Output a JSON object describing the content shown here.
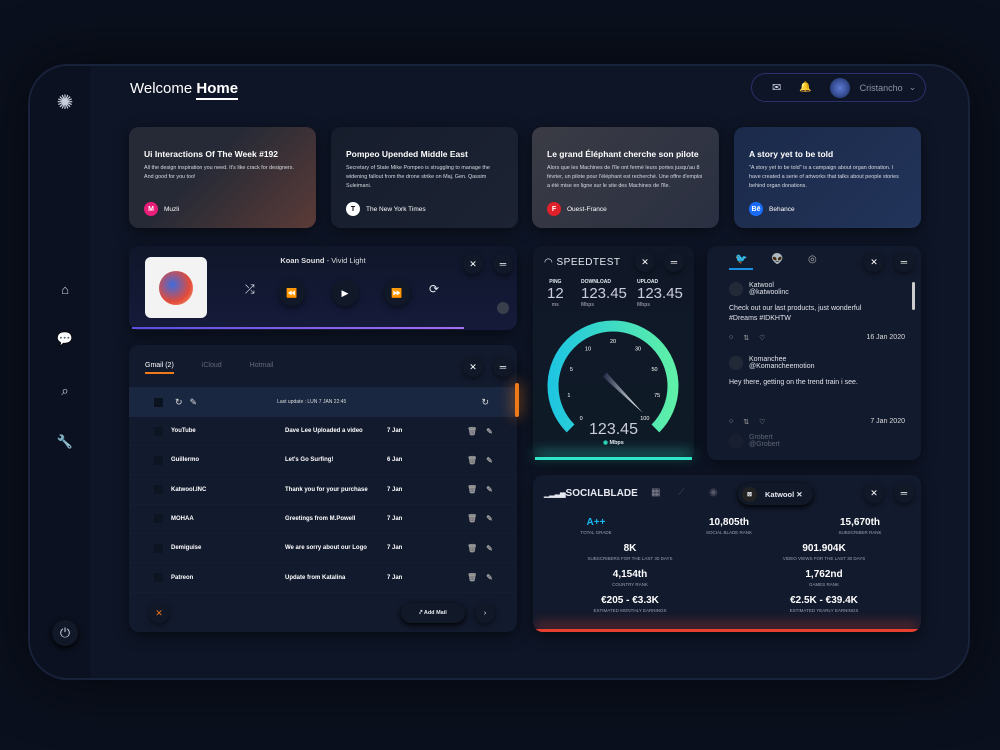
{
  "header": {
    "welcome": "Welcome",
    "home": "Home",
    "user": "Cristancho"
  },
  "sidebar": {
    "items": [
      "home-icon",
      "chat-icon",
      "search-icon",
      "wrench-icon"
    ],
    "power": "power-icon"
  },
  "news": [
    {
      "title": "Ui Interactions Of The Week #192",
      "text": "All the design inspiration you need. It's like crack for design­ers. And good for you too!",
      "source": "Muzli",
      "badge": "M",
      "color": "#e91e78",
      "bg": "linear-gradient(135deg,#262a36 40%,#5c3b37 100%)"
    },
    {
      "title": "Pompeo Upended Middle East",
      "text": "Secretary of State Mike Pompeo is struggling to manage the widening fallout from the drone strike on Maj. Gen. Qassim Suleimani.",
      "source": "The New York Times",
      "badge": "T",
      "color": "#ffffff",
      "bg": "linear-gradient(135deg,#161d2c,#1c2333)"
    },
    {
      "title": "Le grand Éléphant cherche son pilote",
      "text": "Alors que les Machines de l'île ont fermé leurs portes jusqu'au 8 février, un pilote pour l'éléphant est recherché.  Une offre d'emploi a été mise en ligne sur le site des Machines de l'île.",
      "source": "Ouest-France",
      "badge": "F",
      "color": "#e0202a",
      "bg": "linear-gradient(135deg,#3a3b44,#2a3042)"
    },
    {
      "title": "A story yet to be told",
      "text": "\"A story yet to be told\" is a campaign about organ donation. I have created a serie of artworks that talks about people stories behind organ donations.",
      "source": "Behance",
      "badge": "Bē",
      "color": "#1a6cff",
      "bg": "linear-gradient(135deg,#1b2a4a,#22345a)"
    }
  ],
  "music": {
    "artist": "Koan Sound",
    "track": "Vivid Light",
    "progress": 0.87
  },
  "mail": {
    "tabs": [
      "Gmail (2)",
      "iCloud",
      "Hotmail"
    ],
    "last_update": "Last update : LUN 7 JAN 22:45",
    "add": "Add Mail",
    "rows": [
      [
        "YouTube",
        "Dave Lee Uploaded a video",
        "7 Jan"
      ],
      [
        "Guillermo",
        "Let's Go Surfing!",
        "6 Jan"
      ],
      [
        "Katwool.INC",
        "Thank you for your purchase",
        "7 Jan"
      ],
      [
        "MOHAA",
        "Greetings from M.Powell",
        "7 Jan"
      ],
      [
        "Demiguise",
        "We are sorry about our Logo",
        "7 Jan"
      ],
      [
        "Patreon",
        "Update from Katalina",
        "7 Jan"
      ]
    ]
  },
  "speedtest": {
    "title": "SPEEDTEST",
    "ping_label": "PING",
    "ping": "12",
    "ping_unit": "ms",
    "down_label": "DOWNLOAD",
    "down": "123.45",
    "up_label": "UPLOAD",
    "up": "123.45",
    "unit": "Mbps",
    "value": "123.45",
    "ticks": [
      "0",
      "1",
      "5",
      "10",
      "20",
      "30",
      "50",
      "75",
      "100"
    ]
  },
  "social": {
    "tweets": [
      {
        "name": "Katwool",
        "handle": "@katwoolinc",
        "text": "Check out our last products, just wonderful #Dreams #IDKHTW",
        "date": "16 Jan 2020"
      },
      {
        "name": "Komanchee",
        "handle": "@Komancheemotion",
        "text": "Hey there, getting on the trend train i see.",
        "date": "7 Jan 2020"
      },
      {
        "name": "Grobert",
        "handle": "@Grobert"
      }
    ]
  },
  "socialblade": {
    "title": "SOCIALBLADE",
    "channel": "Katwool",
    "stats": [
      {
        "v": "A++",
        "l": "TOTAL GRADE"
      },
      {
        "v": "10,805th",
        "l": "SOCIAL BLADE RANK"
      },
      {
        "v": "15,670th",
        "l": "SUBSCRIBER RANK"
      },
      {
        "v": "8K",
        "l": "SUBSCRIBERS FOR THE LAST 30 DAYS"
      },
      {
        "v": "901.904K",
        "l": "VIDEO VIEWS FOR THE LAST 30 DAYS"
      },
      {
        "v": "4,154th",
        "l": "COUNTRY RANK"
      },
      {
        "v": "1,762nd",
        "l": "GAMES RANK"
      },
      {
        "v": "€205 - €3.3K",
        "l": "ESTIMATED MONTHLY EARNINGS"
      },
      {
        "v": "€2.5K - €39.4K",
        "l": "ESTIMATED YEARLY EARNINGS"
      }
    ]
  },
  "colors": {
    "accent_orange": "#f07a1a",
    "accent_purple": "#7b5cff",
    "teal": "#2ee6c8",
    "grade": "#19b8f0",
    "socialblade_bar": "#e8402f"
  }
}
